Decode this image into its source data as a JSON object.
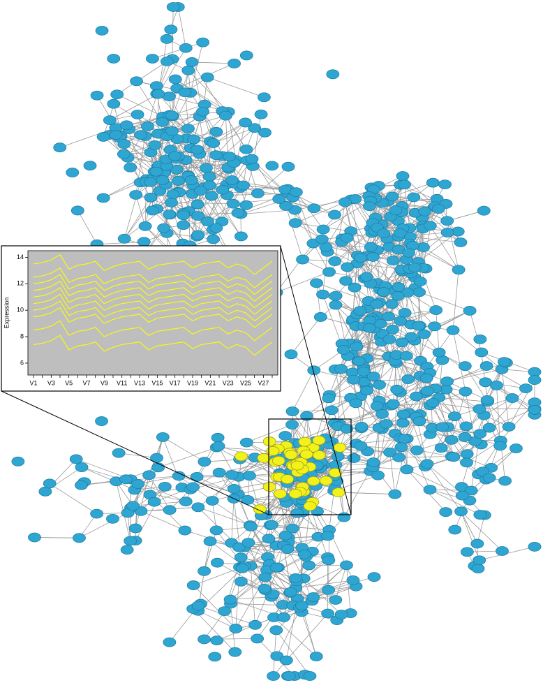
{
  "chart_data": {
    "type": "line",
    "y_label": "Expression",
    "categories": [
      "V1",
      null,
      "V3",
      null,
      "V5",
      null,
      "V7",
      null,
      "V9",
      null,
      "V11",
      null,
      "V13",
      null,
      "V15",
      null,
      "V17",
      null,
      "V19",
      null,
      "V21",
      null,
      "V23",
      null,
      "V25",
      null,
      "V27",
      null
    ],
    "ylim": [
      5.1,
      14.5
    ],
    "yticks": [
      6,
      8,
      10,
      12,
      14
    ],
    "grid": false,
    "background": "#bebebe",
    "series": [
      {
        "color": "#ffff00",
        "values": [
          13.5,
          13.6,
          13.8,
          14.2,
          13.1,
          13.4,
          13.5,
          13.7,
          13.0,
          13.3,
          13.5,
          13.6,
          13.7,
          13.1,
          13.4,
          13.5,
          13.6,
          13.7,
          13.2,
          13.5,
          13.6,
          13.7,
          13.2,
          13.5,
          13.3,
          12.7,
          13.2,
          13.7
        ]
      },
      {
        "color": "#ffff00",
        "values": [
          12.5,
          12.6,
          12.8,
          13.2,
          12.1,
          12.4,
          12.5,
          12.7,
          12.0,
          12.3,
          12.5,
          12.6,
          12.7,
          12.1,
          12.4,
          12.5,
          12.6,
          12.7,
          12.2,
          12.5,
          12.6,
          12.7,
          12.2,
          12.5,
          12.3,
          11.7,
          12.2,
          12.7
        ]
      },
      {
        "color": "#ffff00",
        "values": [
          12.0,
          12.1,
          12.3,
          12.7,
          11.6,
          11.9,
          12.0,
          12.2,
          11.5,
          11.8,
          12.0,
          12.1,
          12.2,
          11.6,
          11.9,
          12.0,
          12.1,
          12.2,
          11.7,
          12.0,
          12.1,
          12.2,
          11.7,
          12.0,
          11.8,
          11.2,
          11.7,
          12.2
        ]
      },
      {
        "color": "#ffff00",
        "values": [
          11.5,
          11.6,
          11.8,
          12.2,
          11.1,
          11.4,
          11.5,
          11.7,
          11.0,
          11.3,
          11.5,
          11.6,
          11.7,
          11.1,
          11.4,
          11.5,
          11.6,
          11.7,
          11.2,
          11.5,
          11.6,
          11.7,
          11.2,
          11.5,
          11.3,
          10.7,
          11.2,
          11.7
        ]
      },
      {
        "color": "#ffff00",
        "values": [
          11.0,
          11.1,
          11.3,
          11.7,
          10.6,
          10.9,
          11.0,
          11.2,
          10.5,
          10.8,
          11.0,
          11.1,
          11.2,
          10.6,
          10.9,
          11.0,
          11.1,
          11.2,
          10.7,
          11.0,
          11.1,
          11.2,
          10.7,
          11.0,
          10.8,
          10.2,
          10.7,
          11.2
        ]
      },
      {
        "color": "#ffff00",
        "values": [
          10.5,
          10.6,
          10.8,
          11.2,
          10.1,
          10.4,
          10.5,
          10.7,
          10.0,
          10.3,
          10.5,
          10.6,
          10.7,
          10.1,
          10.4,
          10.5,
          10.6,
          10.7,
          10.2,
          10.5,
          10.6,
          10.7,
          10.2,
          10.5,
          10.3,
          9.7,
          10.2,
          10.7
        ]
      },
      {
        "color": "#ffff00",
        "values": [
          10.0,
          10.1,
          10.3,
          10.7,
          9.6,
          9.9,
          10.0,
          10.2,
          9.5,
          9.8,
          10.0,
          10.1,
          10.2,
          9.6,
          9.9,
          10.0,
          10.1,
          10.2,
          9.7,
          10.0,
          10.1,
          10.2,
          9.7,
          10.0,
          9.8,
          9.2,
          9.7,
          10.2
        ]
      },
      {
        "color": "#ffff00",
        "values": [
          9.5,
          9.6,
          9.8,
          10.2,
          9.1,
          9.4,
          9.5,
          9.7,
          9.0,
          9.3,
          9.5,
          9.6,
          9.7,
          9.1,
          9.4,
          9.5,
          9.6,
          9.7,
          9.2,
          9.5,
          9.6,
          9.7,
          9.2,
          9.5,
          9.3,
          8.7,
          9.2,
          9.7
        ]
      },
      {
        "color": "#ffff00",
        "values": [
          8.5,
          8.6,
          8.8,
          9.2,
          8.1,
          8.4,
          8.5,
          8.7,
          8.0,
          8.3,
          8.5,
          8.6,
          8.7,
          8.1,
          8.4,
          8.5,
          8.6,
          8.7,
          8.2,
          8.5,
          8.6,
          8.7,
          8.2,
          8.5,
          8.3,
          7.7,
          8.2,
          8.7
        ]
      },
      {
        "color": "#ffff00",
        "values": [
          7.4,
          7.5,
          7.7,
          8.1,
          7.0,
          7.3,
          7.4,
          7.6,
          6.9,
          7.2,
          7.4,
          7.5,
          7.6,
          7.0,
          7.3,
          7.4,
          7.5,
          7.6,
          7.1,
          7.4,
          7.5,
          7.6,
          7.1,
          7.4,
          7.2,
          6.6,
          7.1,
          7.6
        ]
      }
    ]
  }
}
